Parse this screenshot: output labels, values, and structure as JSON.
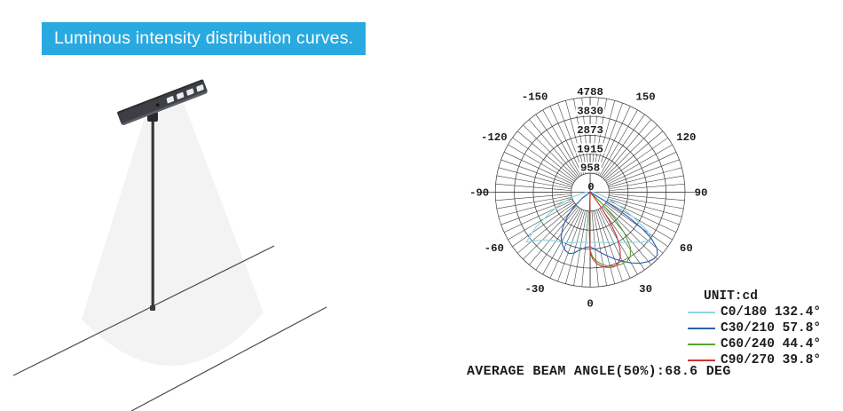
{
  "banner": {
    "label": "Luminous intensity distribution curves.",
    "bg_color": "#29a9e0",
    "text_color": "#ffffff"
  },
  "illustration": {
    "name": "solar-street-lamp-with-light-cone"
  },
  "chart_data": {
    "type": "line",
    "subtype": "polar-luminous-intensity",
    "title": "",
    "unit_label": "UNIT:cd",
    "caption": "AVERAGE BEAM ANGLE(50%):68.6 DEG",
    "rmax": 4788,
    "radial_ticks": [
      "958",
      "1915",
      "2873",
      "3830",
      "4788"
    ],
    "center_tick": "0",
    "angle_ticks": [
      -150,
      -120,
      -90,
      -60,
      -30,
      0,
      30,
      60,
      90,
      120,
      150
    ],
    "grid": {
      "rings": 5,
      "spoke_step_deg": 5,
      "color": "#3d3d3d"
    },
    "legend_position": "bottom-right",
    "series": [
      {
        "name": "C0/180",
        "beam_angle": "132.4°",
        "legend": "C0/180 132.4°",
        "color": "#8fd6e6",
        "points": [
          [
            -90,
            150
          ],
          [
            -82,
            420
          ],
          [
            -75,
            900
          ],
          [
            -68,
            1650
          ],
          [
            -62,
            2400
          ],
          [
            -57,
            3300
          ],
          [
            -52,
            4100
          ],
          [
            -48,
            3650
          ],
          [
            -44,
            3350
          ],
          [
            -40,
            3180
          ],
          [
            -35,
            3020
          ],
          [
            -30,
            2920
          ],
          [
            -25,
            2810
          ],
          [
            -20,
            2710
          ],
          [
            -15,
            2630
          ],
          [
            -10,
            2570
          ],
          [
            -5,
            2540
          ],
          [
            0,
            2530
          ],
          [
            5,
            2540
          ],
          [
            10,
            2570
          ],
          [
            15,
            2630
          ],
          [
            20,
            2710
          ],
          [
            25,
            2820
          ],
          [
            30,
            2940
          ],
          [
            35,
            3090
          ],
          [
            40,
            3300
          ],
          [
            45,
            3580
          ],
          [
            50,
            3850
          ],
          [
            53,
            3900
          ],
          [
            56,
            3450
          ],
          [
            60,
            2500
          ],
          [
            64,
            1700
          ],
          [
            70,
            1000
          ],
          [
            78,
            480
          ],
          [
            84,
            220
          ],
          [
            90,
            100
          ]
        ]
      },
      {
        "name": "C30/210",
        "beam_angle": "57.8°",
        "legend": "C30/210 57.8°",
        "color": "#2f5fb4",
        "points": [
          [
            -57,
            0
          ],
          [
            -53,
            500
          ],
          [
            -48,
            1100
          ],
          [
            -43,
            1700
          ],
          [
            -38,
            2250
          ],
          [
            -33,
            2700
          ],
          [
            -28,
            3000
          ],
          [
            -23,
            3200
          ],
          [
            -19,
            3280
          ],
          [
            -15,
            3180
          ],
          [
            -10,
            2950
          ],
          [
            -5,
            2800
          ],
          [
            0,
            2750
          ],
          [
            5,
            2900
          ],
          [
            10,
            3100
          ],
          [
            15,
            3330
          ],
          [
            20,
            3580
          ],
          [
            25,
            3850
          ],
          [
            30,
            4120
          ],
          [
            35,
            4380
          ],
          [
            40,
            4570
          ],
          [
            44,
            4660
          ],
          [
            47,
            4640
          ],
          [
            50,
            4400
          ],
          [
            53,
            3850
          ],
          [
            55,
            3200
          ],
          [
            57,
            2300
          ],
          [
            59,
            1200
          ],
          [
            61,
            0
          ]
        ]
      },
      {
        "name": "C60/240",
        "beam_angle": "44.4°",
        "legend": "C60/240 44.4°",
        "color": "#57a334",
        "points": [
          [
            -4,
            0
          ],
          [
            -2,
            1200
          ],
          [
            -1,
            2200
          ],
          [
            0,
            2950
          ],
          [
            2,
            3250
          ],
          [
            5,
            3480
          ],
          [
            9,
            3680
          ],
          [
            13,
            3820
          ],
          [
            18,
            3910
          ],
          [
            23,
            3960
          ],
          [
            28,
            3960
          ],
          [
            32,
            3830
          ],
          [
            36,
            3450
          ],
          [
            40,
            2700
          ],
          [
            43,
            1800
          ],
          [
            46,
            800
          ],
          [
            48,
            0
          ]
        ]
      },
      {
        "name": "C90/270",
        "beam_angle": "39.8°",
        "legend": "C90/270 39.8°",
        "color": "#cb3434",
        "points": [
          [
            -2,
            0
          ],
          [
            -1,
            1600
          ],
          [
            0,
            3050
          ],
          [
            2,
            3350
          ],
          [
            5,
            3600
          ],
          [
            9,
            3800
          ],
          [
            13,
            3900
          ],
          [
            17,
            3950
          ],
          [
            21,
            3900
          ],
          [
            25,
            3600
          ],
          [
            28,
            3200
          ],
          [
            31,
            2600
          ],
          [
            34,
            1700
          ],
          [
            36,
            900
          ],
          [
            38,
            300
          ],
          [
            39,
            0
          ]
        ]
      }
    ]
  }
}
